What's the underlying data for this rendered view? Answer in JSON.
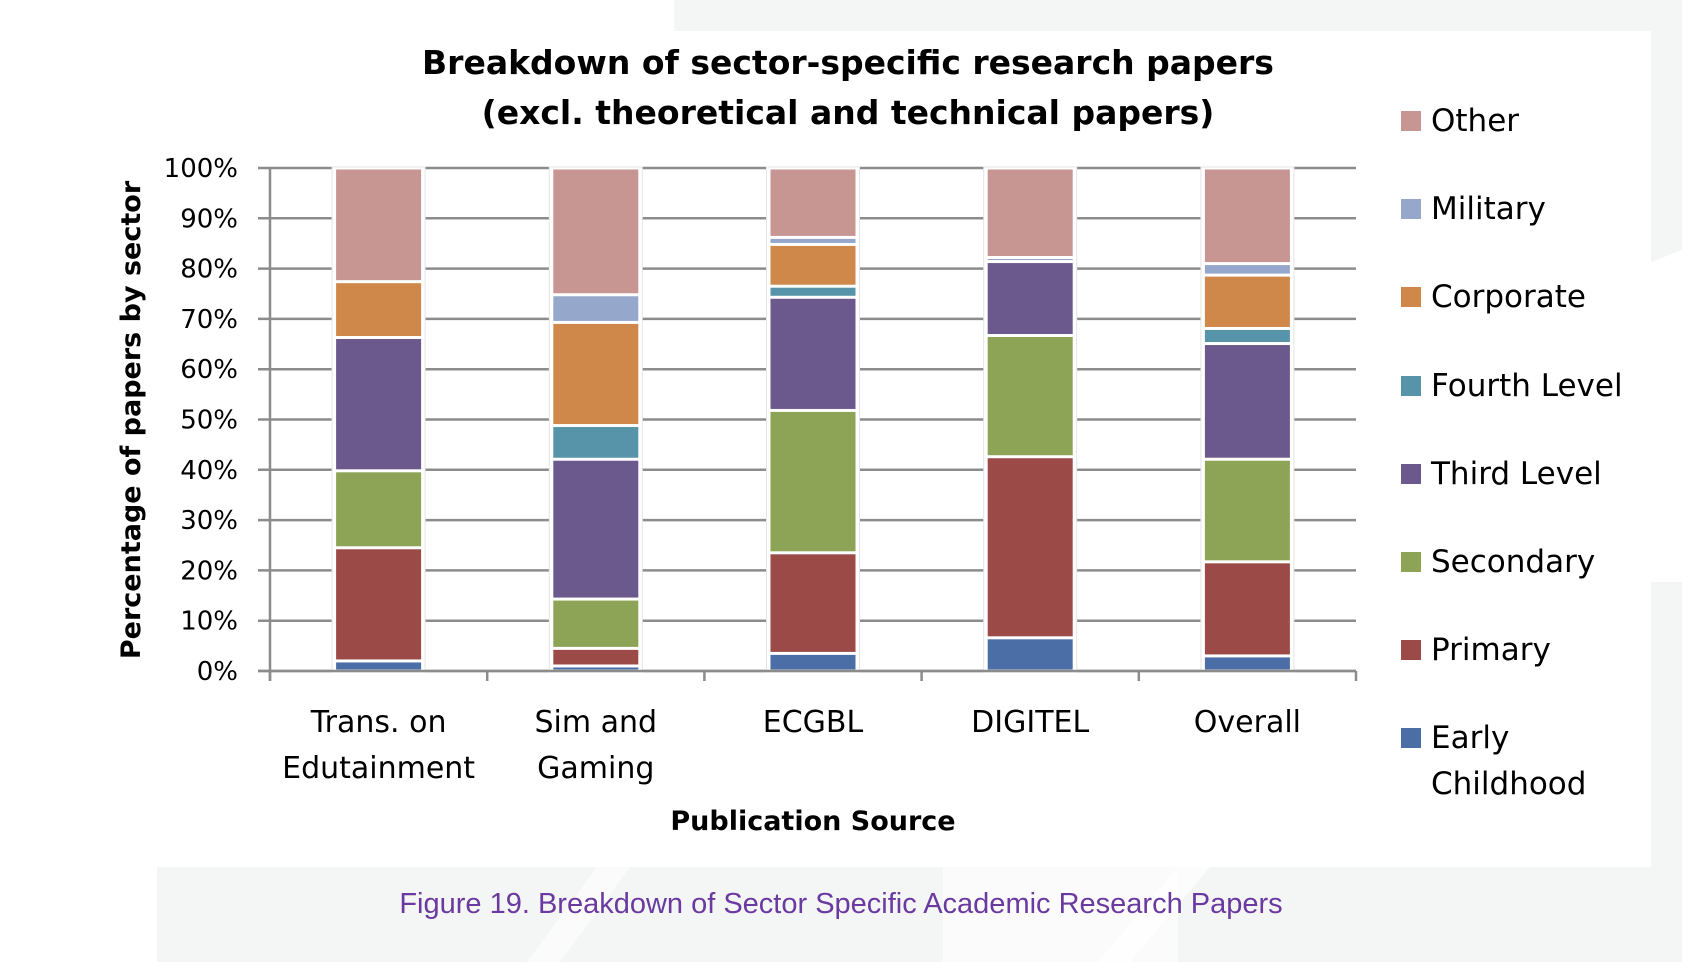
{
  "chart_data": {
    "type": "bar",
    "stacked": true,
    "percent": true,
    "title": [
      "Breakdown of sector-specific research papers",
      "(excl. theoretical and technical papers)"
    ],
    "xlabel": "Publication Source",
    "ylabel": "Percentage of papers by sector",
    "ylim": [
      0,
      100
    ],
    "yticks": [
      "0%",
      "10%",
      "20%",
      "30%",
      "40%",
      "50%",
      "60%",
      "70%",
      "80%",
      "90%",
      "100%"
    ],
    "grid": true,
    "legend_position": "right",
    "categories": [
      [
        "Trans. on",
        "Edutainment"
      ],
      [
        "Sim and",
        "Gaming"
      ],
      [
        "ECGBL"
      ],
      [
        "DIGITEL"
      ],
      [
        "Overall"
      ]
    ],
    "series": [
      {
        "name": [
          "Early",
          "Childhood"
        ],
        "color": "#4a6ea5",
        "values": [
          2.0,
          1.0,
          3.5,
          6.6,
          3.0
        ]
      },
      {
        "name": [
          "Primary"
        ],
        "color": "#9c4a47",
        "values": [
          22.5,
          3.5,
          20.0,
          36.0,
          18.7
        ]
      },
      {
        "name": [
          "Secondary"
        ],
        "color": "#8da356",
        "values": [
          15.3,
          9.8,
          28.3,
          24.1,
          20.4
        ]
      },
      {
        "name": [
          "Third Level"
        ],
        "color": "#6b588c",
        "values": [
          26.5,
          27.8,
          22.5,
          14.7,
          23.0
        ]
      },
      {
        "name": [
          "Fourth Level"
        ],
        "color": "#5794a9",
        "values": [
          0,
          6.7,
          2.2,
          0,
          3.0
        ]
      },
      {
        "name": [
          "Corporate"
        ],
        "color": "#cf874a",
        "values": [
          11.1,
          20.5,
          8.3,
          0,
          10.6
        ]
      },
      {
        "name": [
          "Military"
        ],
        "color": "#95a8cb",
        "values": [
          0,
          5.5,
          1.4,
          0.8,
          2.3
        ]
      },
      {
        "name": [
          "Other"
        ],
        "color": "#c79592",
        "values": [
          22.6,
          25.2,
          13.8,
          17.8,
          19.0
        ]
      }
    ]
  },
  "caption": "Figure 19. Breakdown of Sector Specific Academic Research Papers",
  "colors": {
    "caption": "#6a3aa0",
    "background_gray": "#f4f5f5",
    "grid": "#8c8c8c"
  }
}
